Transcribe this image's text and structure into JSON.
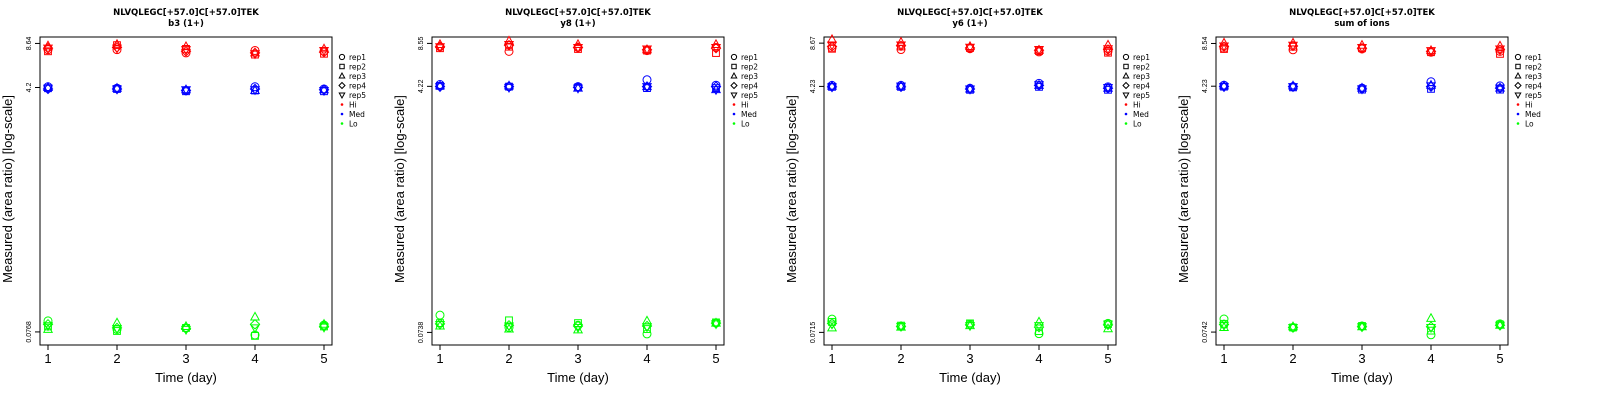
{
  "colors": {
    "Hi": "#ff0000",
    "Med": "#0000ff",
    "Lo": "#00ff00",
    "axis": "#000000"
  },
  "legend": {
    "placement": "right",
    "reps": [
      {
        "label": "rep1",
        "shape": "circle"
      },
      {
        "label": "rep2",
        "shape": "square"
      },
      {
        "label": "rep3",
        "shape": "triangle-up"
      },
      {
        "label": "rep4",
        "shape": "diamond"
      },
      {
        "label": "rep5",
        "shape": "triangle-down"
      }
    ],
    "groups": [
      {
        "label": "Hi",
        "color": "#ff0000"
      },
      {
        "label": "Med",
        "color": "#0000ff"
      },
      {
        "label": "Lo",
        "color": "#00ff00"
      }
    ]
  },
  "chart_data": [
    {
      "type": "scatter",
      "title": "NLVQLEGC[+57.0]C[+57.0]TEK",
      "subtitle": "b3 (1+)",
      "xlabel": "Time (day)",
      "ylabel": "Measured (area ratio) [log-scale]",
      "x_ticks": [
        "1",
        "2",
        "3",
        "4",
        "5"
      ],
      "y_ticks": [
        "0.0768",
        "4.2",
        "8.64"
      ],
      "y_log_range": [
        0.062,
        9.6
      ],
      "series": [
        {
          "group": "Hi",
          "rep": "rep1",
          "values": [
            7.8,
            7.8,
            7.4,
            7.7,
            7.6
          ]
        },
        {
          "group": "Hi",
          "rep": "rep2",
          "values": [
            7.6,
            8.4,
            7.9,
            7.2,
            7.3
          ]
        },
        {
          "group": "Hi",
          "rep": "rep3",
          "values": [
            8.3,
            8.5,
            8.2,
            7.4,
            7.9
          ]
        },
        {
          "group": "Hi",
          "rep": "rep4",
          "values": [
            8.0,
            8.1,
            7.6,
            7.4,
            7.5
          ]
        },
        {
          "group": "Hi",
          "rep": "rep5",
          "values": [
            8.0,
            8.0,
            7.8,
            7.3,
            7.7
          ]
        },
        {
          "group": "Med",
          "rep": "rep1",
          "values": [
            4.25,
            4.15,
            4.0,
            4.25,
            4.1
          ]
        },
        {
          "group": "Med",
          "rep": "rep2",
          "values": [
            4.15,
            4.1,
            3.95,
            4.0,
            3.95
          ]
        },
        {
          "group": "Med",
          "rep": "rep3",
          "values": [
            4.2,
            4.15,
            4.05,
            4.0,
            4.05
          ]
        },
        {
          "group": "Med",
          "rep": "rep4",
          "values": [
            4.1,
            4.1,
            4.0,
            4.1,
            4.05
          ]
        },
        {
          "group": "Med",
          "rep": "rep5",
          "values": [
            4.15,
            4.1,
            4.05,
            4.05,
            4.0
          ]
        },
        {
          "group": "Lo",
          "rep": "rep1",
          "values": [
            0.092,
            0.08,
            0.082,
            0.073,
            0.086
          ]
        },
        {
          "group": "Lo",
          "rep": "rep2",
          "values": [
            0.084,
            0.078,
            0.082,
            0.072,
            0.084
          ]
        },
        {
          "group": "Lo",
          "rep": "rep3",
          "values": [
            0.08,
            0.089,
            0.084,
            0.098,
            0.087
          ]
        },
        {
          "group": "Lo",
          "rep": "rep4",
          "values": [
            0.087,
            0.082,
            0.081,
            0.087,
            0.084
          ]
        },
        {
          "group": "Lo",
          "rep": "rep5",
          "values": [
            0.085,
            0.081,
            0.08,
            0.082,
            0.083
          ]
        }
      ]
    },
    {
      "type": "scatter",
      "title": "NLVQLEGC[+57.0]C[+57.0]TEK",
      "subtitle": "y8 (1+)",
      "xlabel": "Time (day)",
      "ylabel": "Measured (area ratio) [log-scale]",
      "x_ticks": [
        "1",
        "2",
        "3",
        "4",
        "5"
      ],
      "y_ticks": [
        "0.0738",
        "4.22",
        "8.55"
      ],
      "y_log_range": [
        0.06,
        9.5
      ],
      "series": [
        {
          "group": "Hi",
          "rep": "rep1",
          "values": [
            8.1,
            7.5,
            8.0,
            7.6,
            8.0
          ]
        },
        {
          "group": "Hi",
          "rep": "rep2",
          "values": [
            7.9,
            8.1,
            7.8,
            7.6,
            7.3
          ]
        },
        {
          "group": "Hi",
          "rep": "rep3",
          "values": [
            8.4,
            8.9,
            8.4,
            7.7,
            8.4
          ]
        },
        {
          "group": "Hi",
          "rep": "rep4",
          "values": [
            8.1,
            8.3,
            8.0,
            7.7,
            7.9
          ]
        },
        {
          "group": "Hi",
          "rep": "rep5",
          "values": [
            8.1,
            8.4,
            8.0,
            7.8,
            8.0
          ]
        },
        {
          "group": "Med",
          "rep": "rep1",
          "values": [
            4.35,
            4.2,
            4.2,
            4.7,
            4.3
          ]
        },
        {
          "group": "Med",
          "rep": "rep2",
          "values": [
            4.25,
            4.2,
            4.15,
            4.1,
            4.1
          ]
        },
        {
          "group": "Med",
          "rep": "rep3",
          "values": [
            4.25,
            4.25,
            4.1,
            4.2,
            4.0
          ]
        },
        {
          "group": "Med",
          "rep": "rep4",
          "values": [
            4.2,
            4.2,
            4.15,
            4.2,
            4.2
          ]
        },
        {
          "group": "Med",
          "rep": "rep5",
          "values": [
            4.2,
            4.15,
            4.1,
            4.2,
            4.0
          ]
        },
        {
          "group": "Lo",
          "rep": "rep1",
          "values": [
            0.098,
            0.08,
            0.083,
            0.072,
            0.086
          ]
        },
        {
          "group": "Lo",
          "rep": "rep2",
          "values": [
            0.086,
            0.09,
            0.086,
            0.078,
            0.087
          ]
        },
        {
          "group": "Lo",
          "rep": "rep3",
          "values": [
            0.082,
            0.078,
            0.077,
            0.089,
            0.086
          ]
        },
        {
          "group": "Lo",
          "rep": "rep4",
          "values": [
            0.085,
            0.083,
            0.082,
            0.082,
            0.086
          ]
        },
        {
          "group": "Lo",
          "rep": "rep5",
          "values": [
            0.084,
            0.082,
            0.08,
            0.081,
            0.085
          ]
        }
      ]
    },
    {
      "type": "scatter",
      "title": "NLVQLEGC[+57.0]C[+57.0]TEK",
      "subtitle": "y6 (1+)",
      "xlabel": "Time (day)",
      "ylabel": "Measured (area ratio) [log-scale]",
      "x_ticks": [
        "1",
        "2",
        "3",
        "4",
        "5"
      ],
      "y_ticks": [
        "0.0715",
        "4.23",
        "8.67"
      ],
      "y_log_range": [
        0.058,
        9.6
      ],
      "series": [
        {
          "group": "Hi",
          "rep": "rep1",
          "values": [
            8.0,
            7.8,
            7.9,
            7.5,
            7.6
          ]
        },
        {
          "group": "Hi",
          "rep": "rep2",
          "values": [
            7.9,
            8.2,
            8.0,
            7.6,
            7.4
          ]
        },
        {
          "group": "Hi",
          "rep": "rep3",
          "values": [
            9.2,
            8.8,
            8.2,
            7.7,
            8.4
          ]
        },
        {
          "group": "Hi",
          "rep": "rep4",
          "values": [
            8.2,
            8.3,
            8.0,
            7.7,
            7.8
          ]
        },
        {
          "group": "Hi",
          "rep": "rep5",
          "values": [
            8.4,
            8.4,
            8.1,
            7.8,
            7.9
          ]
        },
        {
          "group": "Med",
          "rep": "rep1",
          "values": [
            4.3,
            4.3,
            4.1,
            4.45,
            4.2
          ]
        },
        {
          "group": "Med",
          "rep": "rep2",
          "values": [
            4.2,
            4.2,
            4.0,
            4.2,
            4.0
          ]
        },
        {
          "group": "Med",
          "rep": "rep3",
          "values": [
            4.25,
            4.25,
            4.05,
            4.3,
            4.1
          ]
        },
        {
          "group": "Med",
          "rep": "rep4",
          "values": [
            4.2,
            4.2,
            4.05,
            4.3,
            4.1
          ]
        },
        {
          "group": "Med",
          "rep": "rep5",
          "values": [
            4.2,
            4.25,
            4.05,
            4.35,
            4.15
          ]
        },
        {
          "group": "Lo",
          "rep": "rep1",
          "values": [
            0.089,
            0.079,
            0.082,
            0.07,
            0.083
          ]
        },
        {
          "group": "Lo",
          "rep": "rep2",
          "values": [
            0.085,
            0.08,
            0.083,
            0.073,
            0.082
          ]
        },
        {
          "group": "Lo",
          "rep": "rep3",
          "values": [
            0.077,
            0.078,
            0.08,
            0.085,
            0.076
          ]
        },
        {
          "group": "Lo",
          "rep": "rep4",
          "values": [
            0.083,
            0.079,
            0.081,
            0.078,
            0.081
          ]
        },
        {
          "group": "Lo",
          "rep": "rep5",
          "values": [
            0.082,
            0.079,
            0.08,
            0.08,
            0.082
          ]
        }
      ]
    },
    {
      "type": "scatter",
      "title": "NLVQLEGC[+57.0]C[+57.0]TEK",
      "subtitle": "sum of ions",
      "xlabel": "Time (day)",
      "ylabel": "Measured (area ratio) [log-scale]",
      "x_ticks": [
        "1",
        "2",
        "3",
        "4",
        "5"
      ],
      "y_ticks": [
        "0.0742",
        "4.23",
        "8.54"
      ],
      "y_log_range": [
        0.06,
        9.5
      ],
      "series": [
        {
          "group": "Hi",
          "rep": "rep1",
          "values": [
            7.9,
            7.7,
            7.8,
            7.4,
            7.5
          ]
        },
        {
          "group": "Hi",
          "rep": "rep2",
          "values": [
            7.8,
            8.1,
            7.9,
            7.4,
            7.2
          ]
        },
        {
          "group": "Hi",
          "rep": "rep3",
          "values": [
            8.6,
            8.6,
            8.3,
            7.6,
            8.2
          ]
        },
        {
          "group": "Hi",
          "rep": "rep4",
          "values": [
            8.1,
            8.2,
            7.9,
            7.5,
            7.7
          ]
        },
        {
          "group": "Hi",
          "rep": "rep5",
          "values": [
            8.2,
            8.3,
            8.0,
            7.6,
            7.8
          ]
        },
        {
          "group": "Med",
          "rep": "rep1",
          "values": [
            4.3,
            4.2,
            4.1,
            4.55,
            4.25
          ]
        },
        {
          "group": "Med",
          "rep": "rep2",
          "values": [
            4.2,
            4.15,
            4.0,
            4.05,
            4.0
          ]
        },
        {
          "group": "Med",
          "rep": "rep3",
          "values": [
            4.25,
            4.25,
            4.1,
            4.3,
            4.1
          ]
        },
        {
          "group": "Med",
          "rep": "rep4",
          "values": [
            4.2,
            4.2,
            4.05,
            4.2,
            4.1
          ]
        },
        {
          "group": "Med",
          "rep": "rep5",
          "values": [
            4.2,
            4.2,
            4.05,
            4.25,
            4.1
          ]
        },
        {
          "group": "Lo",
          "rep": "rep1",
          "values": [
            0.092,
            0.08,
            0.082,
            0.071,
            0.085
          ]
        },
        {
          "group": "Lo",
          "rep": "rep2",
          "values": [
            0.085,
            0.08,
            0.082,
            0.076,
            0.084
          ]
        },
        {
          "group": "Lo",
          "rep": "rep3",
          "values": [
            0.08,
            0.081,
            0.081,
            0.093,
            0.083
          ]
        },
        {
          "group": "Lo",
          "rep": "rep4",
          "values": [
            0.084,
            0.08,
            0.081,
            0.081,
            0.083
          ]
        },
        {
          "group": "Lo",
          "rep": "rep5",
          "values": [
            0.083,
            0.08,
            0.081,
            0.08,
            0.083
          ]
        }
      ]
    }
  ]
}
